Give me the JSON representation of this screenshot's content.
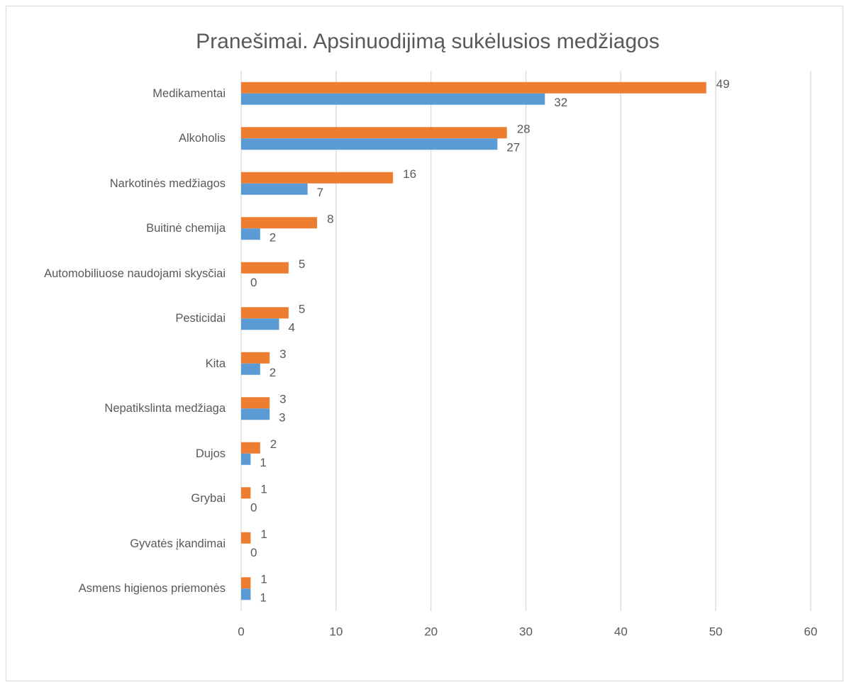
{
  "chart_data": {
    "type": "bar",
    "orientation": "horizontal",
    "title": "Pranešimai. Apsinuodijimą sukėlusios medžiagos",
    "categories": [
      "Medikamentai",
      "Alkoholis",
      "Narkotinės medžiagos",
      "Buitinė chemija",
      "Automobiliuose naudojami skysčiai",
      "Pesticidai",
      "Kita",
      "Nepatikslinta medžiaga",
      "Dujos",
      "Grybai",
      "Gyvatės įkandimai",
      "Asmens higienos priemonės"
    ],
    "series": [
      {
        "color": "#ed7d31",
        "values": [
          49,
          28,
          16,
          8,
          5,
          5,
          3,
          3,
          2,
          1,
          1,
          1
        ]
      },
      {
        "color": "#5b9bd5",
        "values": [
          32,
          27,
          7,
          2,
          0,
          4,
          2,
          3,
          1,
          0,
          0,
          1
        ]
      }
    ],
    "xlim": [
      0,
      60
    ],
    "xticks": [
      0,
      10,
      20,
      30,
      40,
      50,
      60
    ],
    "grid": true
  }
}
